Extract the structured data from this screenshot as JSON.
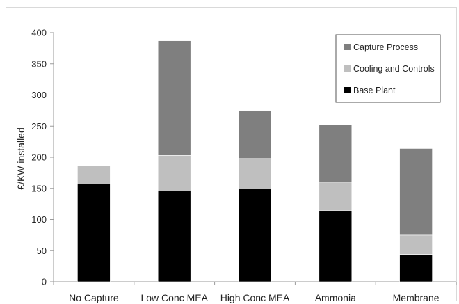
{
  "chart_data": {
    "type": "bar",
    "stacked": true,
    "categories": [
      "No Capture",
      "Low Conc MEA",
      "High Conc MEA",
      "Ammonia",
      "Membrane"
    ],
    "series": [
      {
        "name": "Base Plant",
        "color": "#000000",
        "values": [
          157,
          146,
          149,
          114,
          44
        ]
      },
      {
        "name": "Cooling and Controls",
        "color": "#bfbfbf",
        "values": [
          29,
          57,
          49,
          45,
          31
        ]
      },
      {
        "name": "Capture Process",
        "color": "#7f7f7f",
        "values": [
          0,
          184,
          77,
          93,
          139
        ]
      }
    ],
    "ylabel": "£/KW installed",
    "xlabel": "",
    "ylim": [
      0,
      400
    ],
    "yticks": [
      0,
      50,
      100,
      150,
      200,
      250,
      300,
      350,
      400
    ],
    "grid": false,
    "legend_position": "top-right",
    "legend_order": [
      "Capture Process",
      "Cooling and Controls",
      "Base Plant"
    ]
  }
}
